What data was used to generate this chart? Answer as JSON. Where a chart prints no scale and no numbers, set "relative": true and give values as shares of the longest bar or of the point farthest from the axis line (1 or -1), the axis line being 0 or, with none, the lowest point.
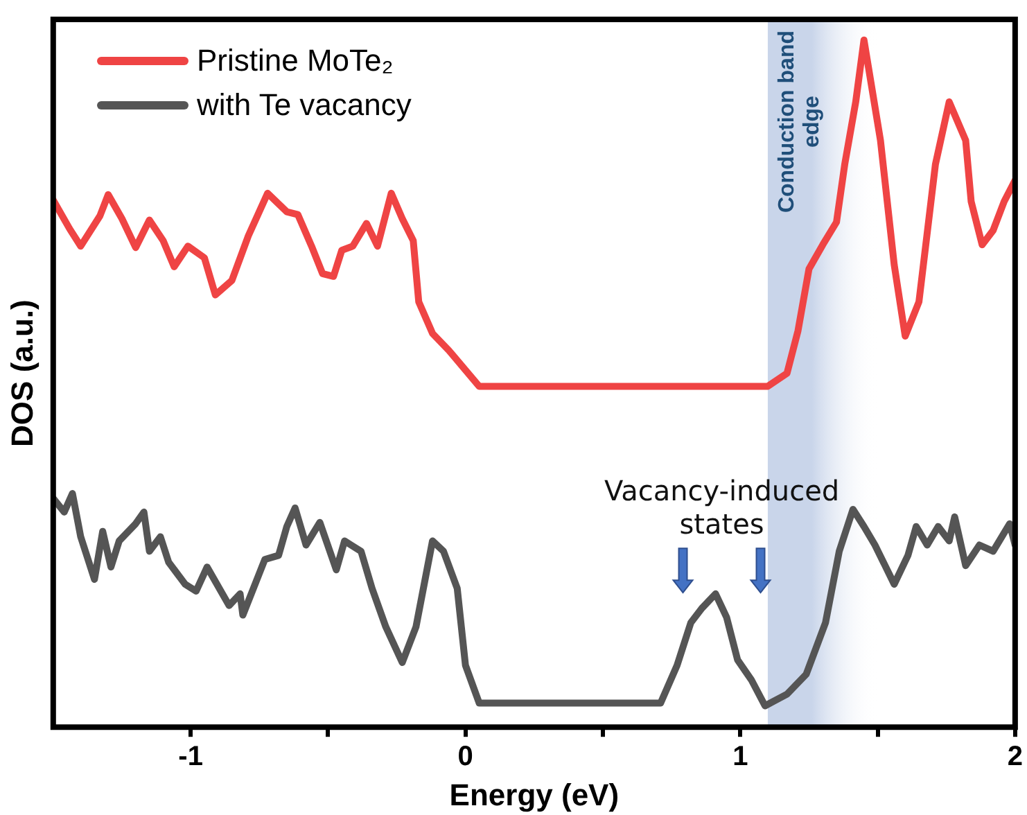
{
  "chart_data": {
    "type": "line",
    "xlabel": "Energy (eV)",
    "ylabel": "DOS (a.u.)",
    "relative": true,
    "xlim": [
      -1.5,
      2
    ],
    "xticks": [
      -1,
      {
        "value": -0.5,
        "label": null
      },
      0,
      {
        "value": 0.5,
        "label": null
      },
      1,
      {
        "value": 1.5,
        "label": null
      },
      2
    ],
    "grid": false,
    "legend": "top left",
    "marker": "none",
    "line_style": "solid",
    "series": [
      {
        "name": "Pristine MoTe₂",
        "color": "#ef4444",
        "x": [
          -1.5,
          -1.44,
          -1.4,
          -1.33,
          -1.3,
          -1.25,
          -1.2,
          -1.15,
          -1.1,
          -1.06,
          -1.01,
          -0.95,
          -0.91,
          -0.85,
          -0.79,
          -0.72,
          -0.65,
          -0.61,
          -0.56,
          -0.52,
          -0.48,
          -0.45,
          -0.41,
          -0.36,
          -0.32,
          -0.27,
          -0.23,
          -0.19,
          -0.17,
          -0.12,
          -0.06,
          0.05,
          1.1,
          1.17,
          1.21,
          1.25,
          1.3,
          1.35,
          1.38,
          1.42,
          1.45,
          1.51,
          1.56,
          1.6,
          1.65,
          1.71,
          1.76,
          1.82,
          1.84,
          1.88,
          1.92,
          1.96,
          2.0
        ],
        "values": [
          0.767,
          0.725,
          0.7,
          0.744,
          0.775,
          0.74,
          0.698,
          0.738,
          0.708,
          0.67,
          0.7,
          0.683,
          0.629,
          0.65,
          0.715,
          0.777,
          0.75,
          0.746,
          0.7,
          0.66,
          0.656,
          0.694,
          0.7,
          0.733,
          0.7,
          0.777,
          0.74,
          0.708,
          0.619,
          0.573,
          0.548,
          0.496,
          0.496,
          0.515,
          0.577,
          0.667,
          0.702,
          0.735,
          0.819,
          0.91,
          1.0,
          0.854,
          0.673,
          0.569,
          0.619,
          0.819,
          0.91,
          0.854,
          0.765,
          0.702,
          0.723,
          0.765,
          0.796
        ]
      },
      {
        "name": "with Te vacancy",
        "color": "#555555",
        "x": [
          -1.5,
          -1.46,
          -1.43,
          -1.4,
          -1.35,
          -1.32,
          -1.29,
          -1.26,
          -1.2,
          -1.17,
          -1.15,
          -1.11,
          -1.08,
          -1.02,
          -0.98,
          -0.94,
          -0.86,
          -0.82,
          -0.81,
          -0.73,
          -0.68,
          -0.65,
          -0.62,
          -0.58,
          -0.53,
          -0.47,
          -0.44,
          -0.38,
          -0.34,
          -0.29,
          -0.23,
          -0.18,
          -0.12,
          -0.08,
          -0.03,
          0.0,
          0.05,
          0.71,
          0.77,
          0.82,
          0.86,
          0.91,
          0.95,
          0.99,
          1.04,
          1.09,
          1.17,
          1.24,
          1.31,
          1.36,
          1.41,
          1.45,
          1.49,
          1.56,
          1.61,
          1.64,
          1.68,
          1.72,
          1.76,
          1.78,
          1.82,
          1.87,
          1.92,
          1.98,
          2.0
        ],
        "values": [
          0.333,
          0.313,
          0.34,
          0.277,
          0.215,
          0.285,
          0.233,
          0.271,
          0.296,
          0.313,
          0.256,
          0.277,
          0.24,
          0.208,
          0.198,
          0.233,
          0.177,
          0.194,
          0.163,
          0.244,
          0.25,
          0.292,
          0.319,
          0.265,
          0.298,
          0.229,
          0.271,
          0.256,
          0.202,
          0.146,
          0.094,
          0.146,
          0.271,
          0.256,
          0.202,
          0.09,
          0.035,
          0.035,
          0.09,
          0.152,
          0.173,
          0.194,
          0.16,
          0.098,
          0.069,
          0.031,
          0.048,
          0.077,
          0.152,
          0.256,
          0.317,
          0.292,
          0.265,
          0.208,
          0.25,
          0.292,
          0.265,
          0.292,
          0.271,
          0.306,
          0.235,
          0.265,
          0.256,
          0.296,
          0.265
        ]
      }
    ],
    "bands": [
      {
        "axis": "x",
        "from": 1.1,
        "to": 1.5,
        "label": "Conduction band edge",
        "color": "#c9d5ea"
      }
    ],
    "annotations": [
      "Vacancy-induced states"
    ]
  }
}
